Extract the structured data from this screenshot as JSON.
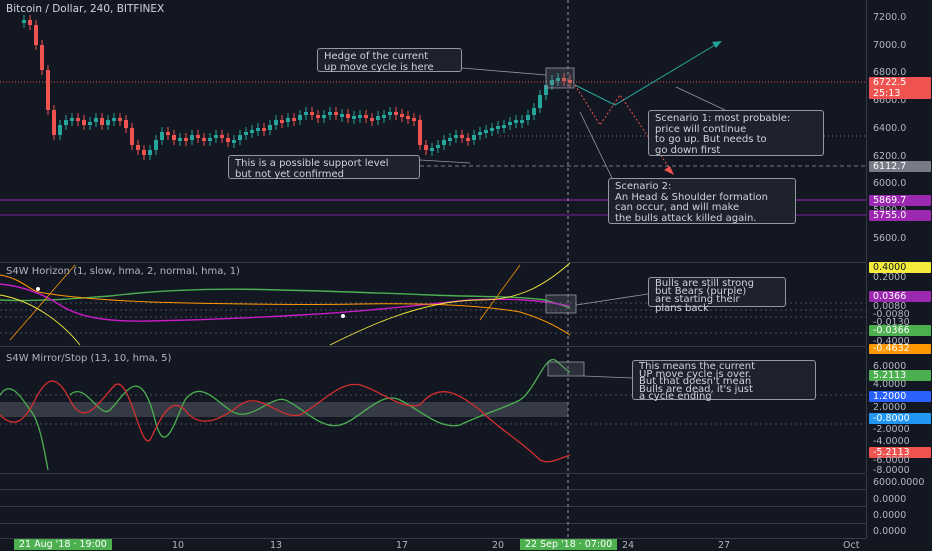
{
  "header": {
    "symbol": "Bitcoin / Dollar, 240, BITFINEX"
  },
  "colors": {
    "bg": "#131722",
    "up": "#26a69a",
    "down": "#ef5350",
    "cursor_label": "#4caf50"
  },
  "main_scale": {
    "ticks": [
      "7200.0",
      "7000.0",
      "6800.0",
      "6600.0",
      "6400.0",
      "6200.0",
      "6000.0",
      "5800.0",
      "5600.0"
    ],
    "tags": [
      {
        "label": "6722.5",
        "color": "#ef5350"
      },
      {
        "label": "25:13",
        "color": "#ef5350"
      },
      {
        "label": "6112.7",
        "color": "#787b86"
      },
      {
        "label": "5869.7",
        "color": "#9c27b0"
      },
      {
        "label": "5755.0",
        "color": "#9c27b0"
      }
    ]
  },
  "annotations": {
    "hedge": "Hedge of the current\nup move cycle is here",
    "support": "This is a possible support level\nbut not yet confirmed",
    "scenario1": "Scenario 1: most probable:\nprice will continue\nto go up. But needs to\ngo down first",
    "scenario2": "Scenario 2:\nAn Head & Shoulder formation\ncan occur, and will make\nthe bulls attack killed again.",
    "bulls": "Bulls are still strong\nbut Bears (purple)\nare starting their\nplans back",
    "cycle": "This means the current\nUP move cycle is over.\nBut that doesn't mean\nBulls are dead, it's just\na cycle ending"
  },
  "horizon": {
    "title": "S4W Horizon (1, slow, hma, 2, normal, hma, 1)",
    "ticks": [
      "0.4000",
      "0.2000",
      "0.0080",
      "-0.0080",
      "-0.0130",
      "-0.2000",
      "-0.4000"
    ],
    "tags": [
      {
        "label": "0.4000",
        "color": "#f5eb3b"
      },
      {
        "label": "0.0366",
        "color": "#9c27b0"
      },
      {
        "label": "-0.0366",
        "color": "#4caf50"
      },
      {
        "label": "-0.4632",
        "color": "#ff9800"
      }
    ]
  },
  "mirror": {
    "title": "S4W Mirror/Stop (13, 10, hma, 5)",
    "ticks": [
      "6.0000",
      "4.0000",
      "2.0000",
      "0.0000",
      "-2.0000",
      "-4.0000",
      "-6.0000",
      "-8.0000"
    ],
    "tags": [
      {
        "label": "5.2113",
        "color": "#4caf50"
      },
      {
        "label": "1.2000",
        "color": "#2962ff"
      },
      {
        "label": "-0.8000",
        "color": "#2196f3"
      },
      {
        "label": "-5.2113",
        "color": "#ef5350"
      }
    ]
  },
  "extra_scale": {
    "ticks": [
      "6000.0000",
      "0.0000",
      "0.0000",
      "0.0000"
    ]
  },
  "x_axis": {
    "start_badge": "21 Aug '18 · 19:00",
    "cursor_badge": "22 Sep '18 · 07:00",
    "labels": [
      "10",
      "13",
      "17",
      "20",
      "24",
      "27",
      "Oct"
    ]
  }
}
